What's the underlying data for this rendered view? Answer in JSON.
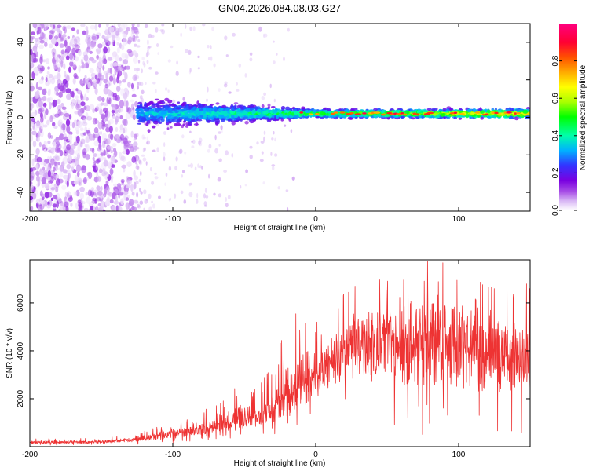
{
  "title": "GN04.2026.084.08.03.G27",
  "chart_data": [
    {
      "type": "heatmap",
      "xlabel": "Height of straight line (km)",
      "ylabel": "Frequency (Hz)",
      "xlim": [
        -200,
        150
      ],
      "ylim": [
        -50,
        50
      ],
      "xticks": [
        -200,
        -100,
        0,
        100
      ],
      "yticks": [
        -40,
        -20,
        0,
        20,
        40
      ],
      "grid": false,
      "colorbar": {
        "label": "Normalized spectral amplitude",
        "range": [
          0,
          1
        ],
        "ticks": [
          "0.0",
          "0.2",
          "0.4",
          "0.6",
          "0.8"
        ],
        "colors": [
          "#ffffff",
          "#d9b8f5",
          "#a84fe6",
          "#7a00e0",
          "#3333ff",
          "#00b0ff",
          "#00ffaa",
          "#00ff00",
          "#aaff00",
          "#ffff00",
          "#ffaa00",
          "#ff5000",
          "#ff0033",
          "#ff0080"
        ]
      },
      "features": {
        "noise_region_x": [
          -200,
          -125
        ],
        "dominant_frequency_hz": 2,
        "ridge_spread_hz": {
          "near_x_-120": 10,
          "near_x_0": 3,
          "near_x_150": 3
        }
      }
    },
    {
      "type": "line",
      "xlabel": "Height of straight line (km)",
      "ylabel": "SNR (10 * v/v)",
      "xlim": [
        -200,
        150
      ],
      "ylim": [
        0,
        7800
      ],
      "xticks": [
        -200,
        -100,
        0,
        100
      ],
      "yticks": [
        2000,
        4000,
        6000
      ],
      "grid": false,
      "series": [
        {
          "name": "SNR",
          "color": "#ee3333",
          "envelope": {
            "x": [
              -200,
              -150,
              -125,
              -100,
              -80,
              -60,
              -40,
              -20,
              -10,
              0,
              20,
              30,
              50,
              80,
              100,
              120,
              150
            ],
            "mean": [
              150,
              200,
              300,
              500,
              700,
              900,
              1200,
              1800,
              2300,
              2900,
              3800,
              4100,
              4200,
              4300,
              4100,
              3900,
              3700
            ],
            "max": [
              330,
              380,
              600,
              1000,
              1400,
              2500,
              2400,
              5300,
              6200,
              5200,
              6600,
              7000,
              7200,
              7800,
              7600,
              6800,
              6800
            ],
            "min": [
              50,
              80,
              100,
              150,
              250,
              300,
              400,
              500,
              800,
              1000,
              1500,
              1200,
              800,
              100,
              100,
              300,
              500
            ]
          }
        }
      ]
    }
  ]
}
